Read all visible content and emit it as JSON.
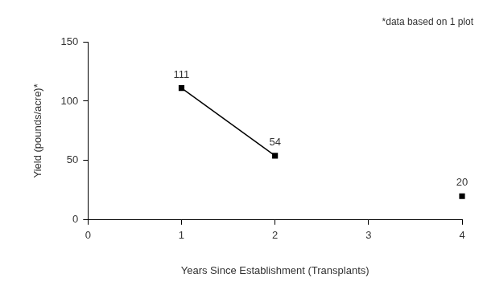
{
  "chart_data": {
    "type": "line",
    "annotation": "*data based on 1 plot",
    "x_label": "Years Since Establishment (Transplants)",
    "y_label": "Yield (pounds/acre)*",
    "x": [
      1,
      2,
      3,
      4
    ],
    "values": [
      111,
      54,
      null,
      20
    ],
    "xlim": [
      0,
      4
    ],
    "xticks": [
      0,
      1,
      2,
      3,
      4
    ],
    "ylim": [
      0,
      150
    ],
    "yticks": [
      0,
      50,
      100,
      150
    ],
    "grid": false,
    "data_labels": true,
    "color": "#000000",
    "marker": "square",
    "line_style": "solid"
  }
}
